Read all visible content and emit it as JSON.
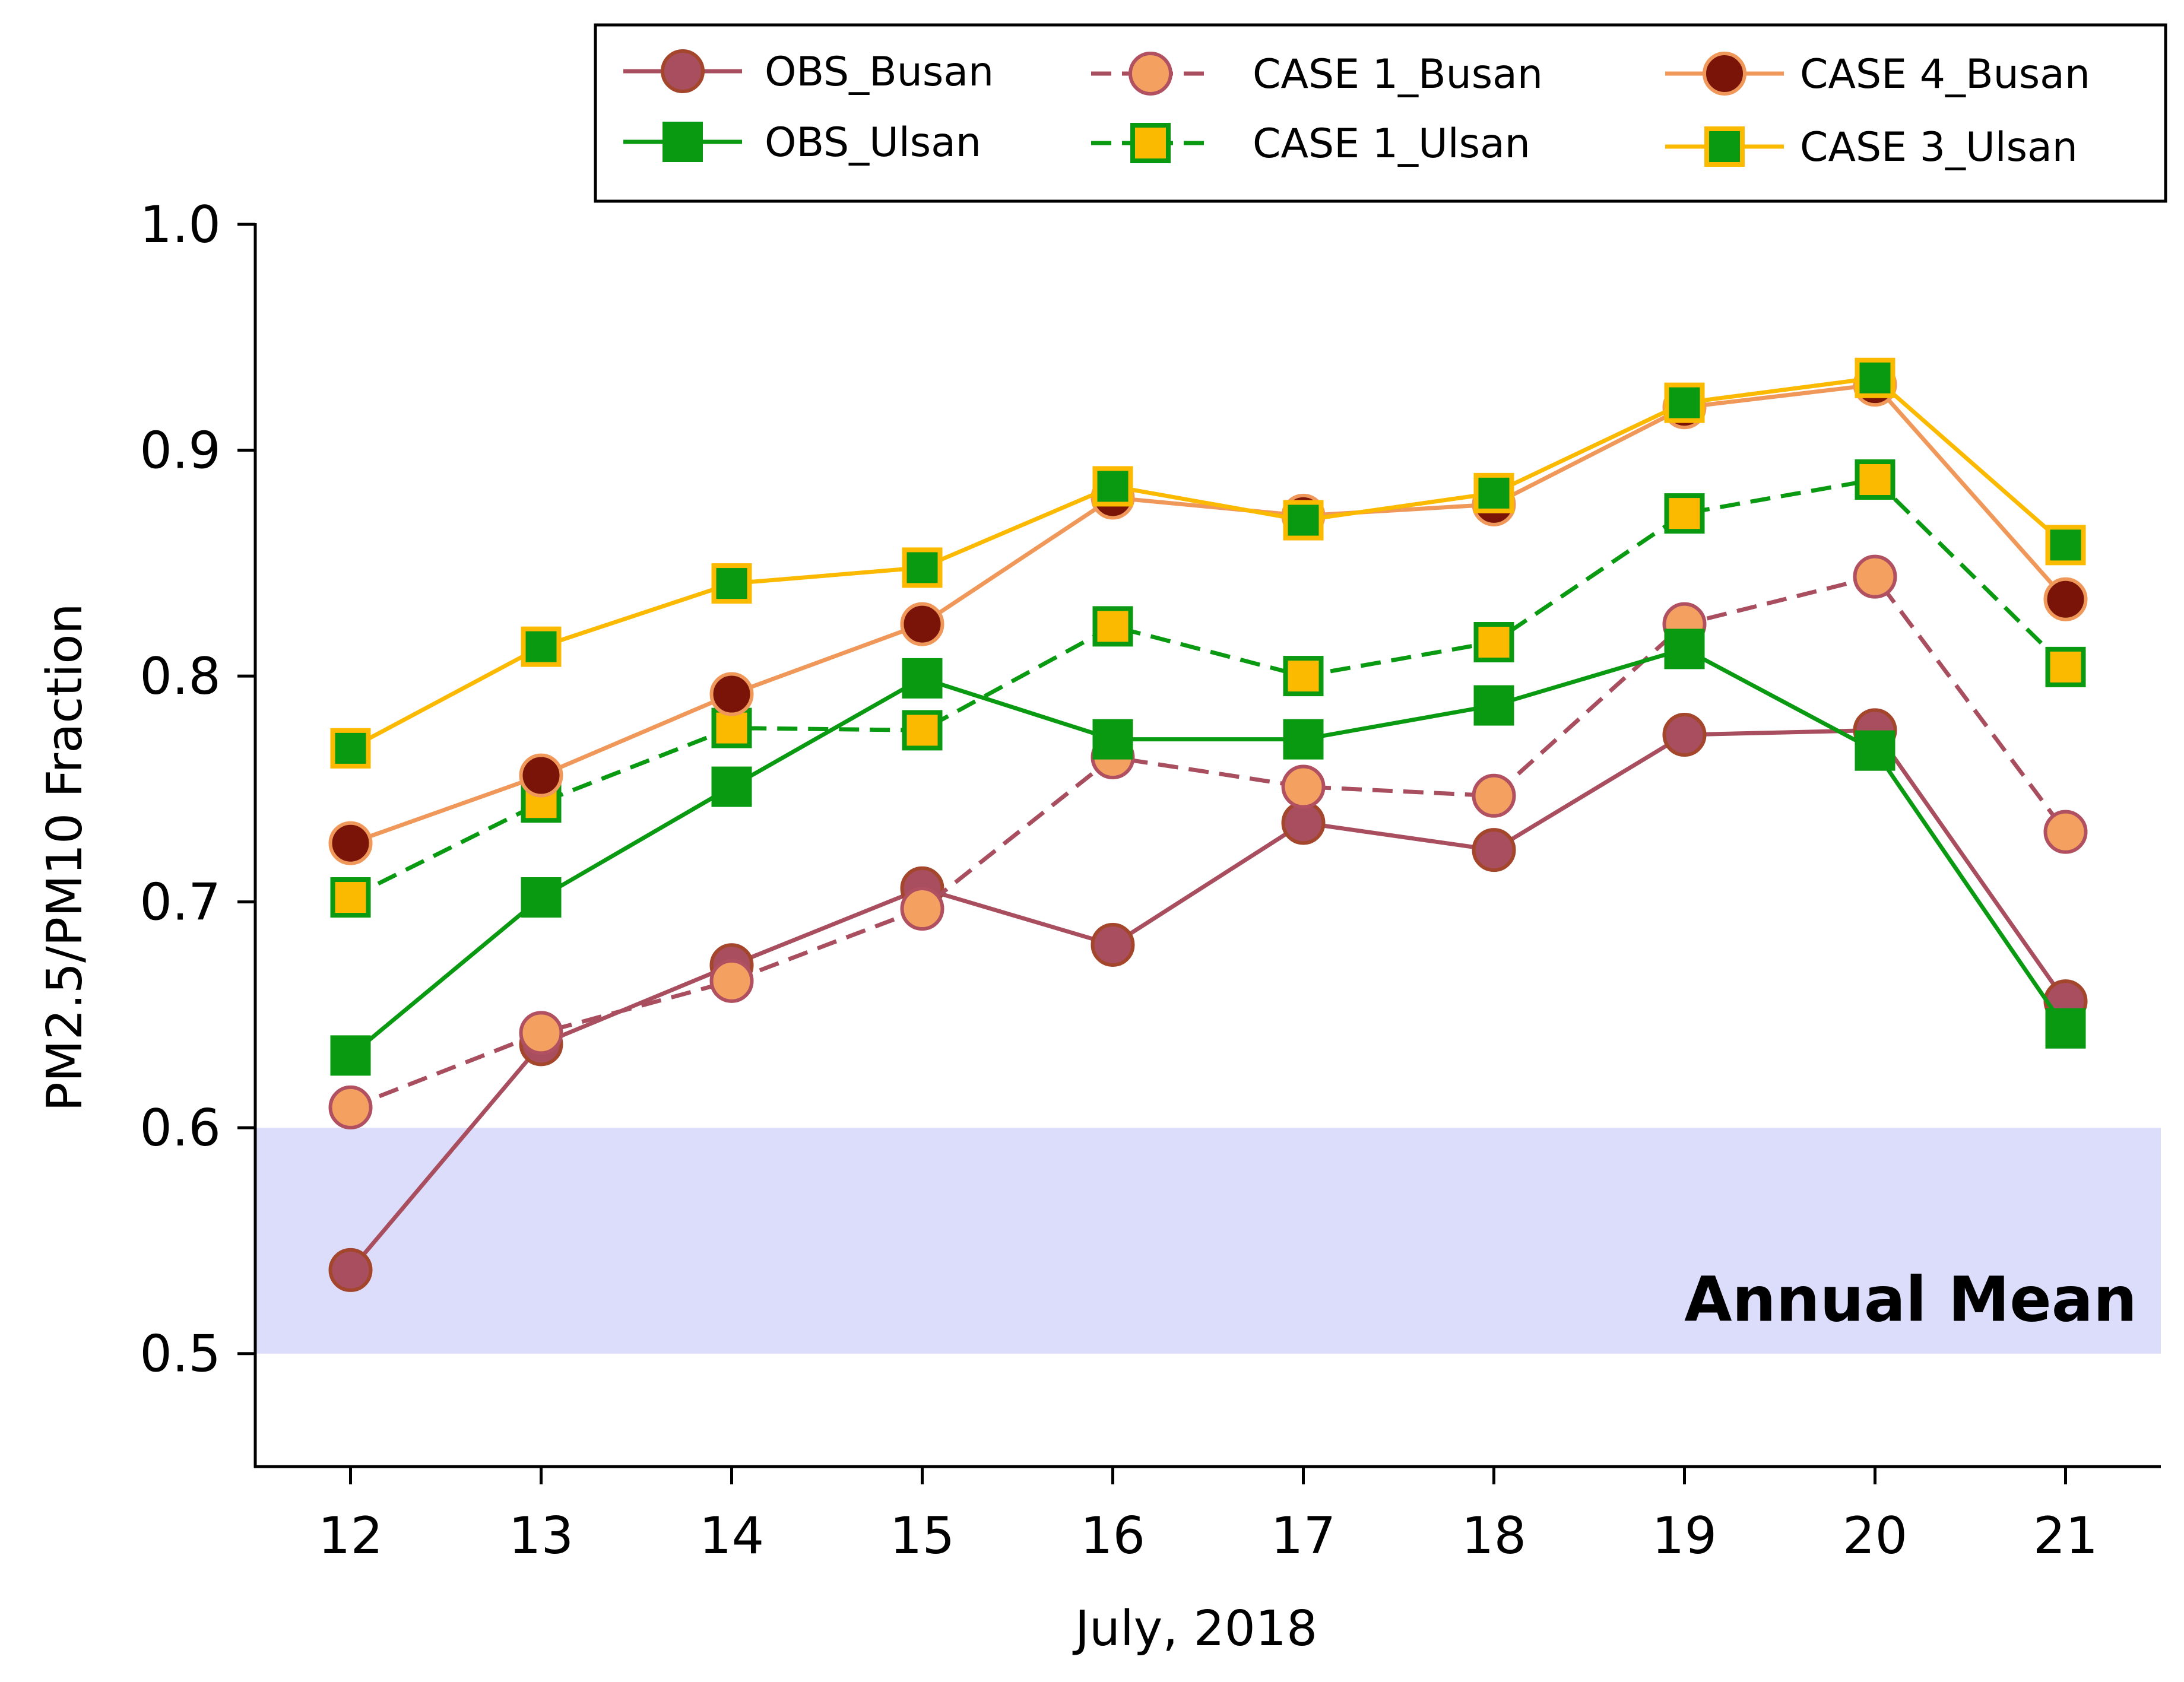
{
  "chart_data": {
    "type": "line",
    "title": "",
    "xlabel": "July, 2018",
    "ylabel": "PM2.5/PM10 Fraction",
    "categories": [
      "12",
      "13",
      "14",
      "15",
      "16",
      "17",
      "18",
      "19",
      "20",
      "21"
    ],
    "xlim": [
      11.5,
      21.5
    ],
    "ylim": [
      0.45,
      1.0
    ],
    "yticks": [
      "0.5",
      "0.6",
      "0.7",
      "0.8",
      "0.9",
      "1.0"
    ],
    "grid": false,
    "legend_position": "top (outside, above plot)",
    "band": {
      "label": "Annual Mean",
      "y_range": [
        0.5,
        0.6
      ],
      "color": "#dcdcfb"
    },
    "series": [
      {
        "name": "OBS_Busan",
        "marker": "circle",
        "dashed": false,
        "line_color": "#a84e5e",
        "marker_fill": "#a84e5e",
        "marker_edge": "#a3462c",
        "values": [
          0.537,
          0.637,
          0.672,
          0.706,
          0.681,
          0.735,
          0.723,
          0.774,
          0.776,
          0.656
        ]
      },
      {
        "name": "OBS_Ulsan",
        "marker": "square",
        "dashed": false,
        "line_color": "#0a9a12",
        "marker_fill": "#0a9a12",
        "marker_edge": "#0a9a12",
        "values": [
          0.632,
          0.702,
          0.751,
          0.799,
          0.772,
          0.772,
          0.787,
          0.812,
          0.767,
          0.644
        ]
      },
      {
        "name": "CASE 1_Busan",
        "marker": "circle",
        "dashed": true,
        "line_color": "#a84e5e",
        "marker_fill": "#f3a060",
        "marker_edge": "#b05060",
        "values": [
          0.609,
          0.642,
          0.665,
          0.697,
          0.764,
          0.751,
          0.747,
          0.823,
          0.844,
          0.731
        ]
      },
      {
        "name": "CASE 1_Ulsan",
        "marker": "square",
        "dashed": true,
        "line_color": "#0a9a12",
        "marker_fill": "#fbb900",
        "marker_edge": "#0a9a12",
        "values": [
          0.702,
          0.744,
          0.777,
          0.776,
          0.822,
          0.8,
          0.815,
          0.872,
          0.887,
          0.804
        ]
      },
      {
        "name": "CASE 4_Busan",
        "marker": "circle",
        "dashed": false,
        "line_color": "#f0985a",
        "marker_fill": "#7a1408",
        "marker_edge": "#f0985a",
        "values": [
          0.726,
          0.756,
          0.792,
          0.823,
          0.879,
          0.871,
          0.876,
          0.919,
          0.929,
          0.834
        ]
      },
      {
        "name": "CASE 3_Ulsan",
        "marker": "square",
        "dashed": false,
        "line_color": "#fbb900",
        "marker_fill": "#0a9a12",
        "marker_edge": "#fbb900",
        "values": [
          0.768,
          0.813,
          0.841,
          0.848,
          0.884,
          0.869,
          0.881,
          0.921,
          0.932,
          0.858
        ]
      }
    ]
  }
}
